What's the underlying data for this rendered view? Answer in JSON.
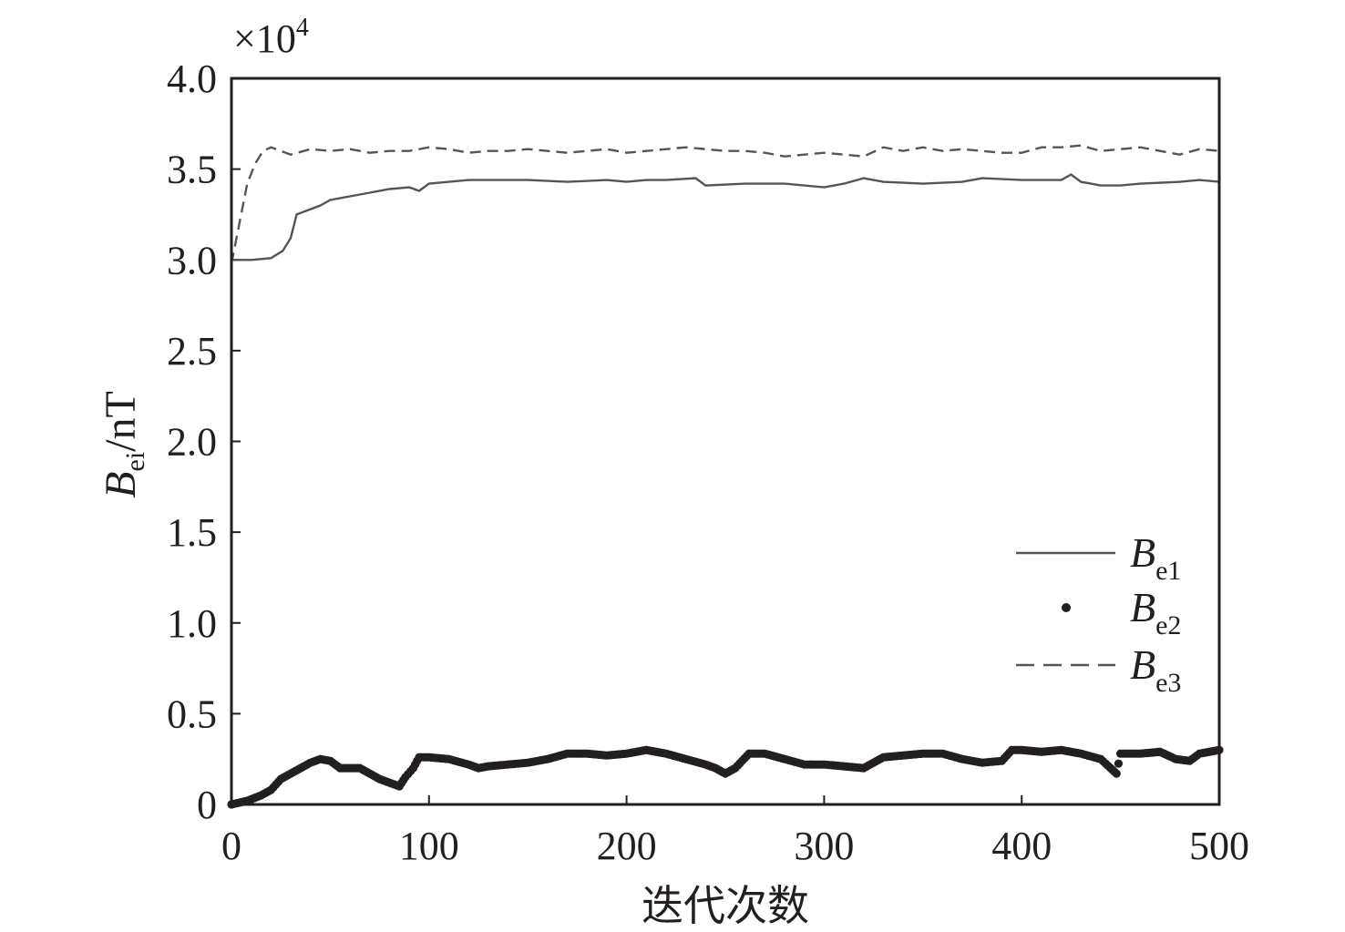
{
  "chart_data": {
    "type": "line",
    "multiplier": "×10",
    "multiplier_exp": "4",
    "xlabel": "迭代次数",
    "ylabel": {
      "base": "B",
      "sub": "ei",
      "unit": "/nT"
    },
    "xlim": [
      0,
      500
    ],
    "ylim": [
      0,
      4.0
    ],
    "xticks": [
      "0",
      "100",
      "200",
      "300",
      "400",
      "500"
    ],
    "yticks": [
      "0",
      "0.5",
      "1.0",
      "1.5",
      "2.0",
      "2.5",
      "3.0",
      "3.5",
      "4.0"
    ],
    "legend_position": "bottom-right",
    "series": [
      {
        "name": "B",
        "sub": "e1",
        "style": "solid",
        "color": "#555555",
        "points": [
          [
            0,
            3.0
          ],
          [
            5,
            3.0
          ],
          [
            10,
            3.0
          ],
          [
            20,
            3.01
          ],
          [
            26,
            3.05
          ],
          [
            30,
            3.12
          ],
          [
            33,
            3.25
          ],
          [
            45,
            3.3
          ],
          [
            50,
            3.33
          ],
          [
            60,
            3.35
          ],
          [
            70,
            3.37
          ],
          [
            80,
            3.39
          ],
          [
            90,
            3.4
          ],
          [
            95,
            3.38
          ],
          [
            100,
            3.42
          ],
          [
            110,
            3.43
          ],
          [
            120,
            3.44
          ],
          [
            130,
            3.44
          ],
          [
            150,
            3.44
          ],
          [
            170,
            3.43
          ],
          [
            190,
            3.44
          ],
          [
            200,
            3.43
          ],
          [
            210,
            3.44
          ],
          [
            220,
            3.44
          ],
          [
            235,
            3.45
          ],
          [
            240,
            3.41
          ],
          [
            260,
            3.42
          ],
          [
            280,
            3.42
          ],
          [
            290,
            3.41
          ],
          [
            300,
            3.4
          ],
          [
            310,
            3.42
          ],
          [
            320,
            3.45
          ],
          [
            330,
            3.43
          ],
          [
            350,
            3.42
          ],
          [
            370,
            3.43
          ],
          [
            380,
            3.45
          ],
          [
            400,
            3.44
          ],
          [
            420,
            3.44
          ],
          [
            425,
            3.47
          ],
          [
            430,
            3.43
          ],
          [
            440,
            3.41
          ],
          [
            450,
            3.41
          ],
          [
            460,
            3.42
          ],
          [
            480,
            3.43
          ],
          [
            490,
            3.44
          ],
          [
            500,
            3.43
          ]
        ]
      },
      {
        "name": "B",
        "sub": "e2",
        "style": "dots",
        "color": "#231f20",
        "points": [
          [
            0,
            0
          ],
          [
            8,
            0.02
          ],
          [
            15,
            0.05
          ],
          [
            20,
            0.08
          ],
          [
            25,
            0.14
          ],
          [
            30,
            0.17
          ],
          [
            35,
            0.2
          ],
          [
            40,
            0.23
          ],
          [
            45,
            0.25
          ],
          [
            50,
            0.24
          ],
          [
            55,
            0.2
          ],
          [
            60,
            0.2
          ],
          [
            65,
            0.2
          ],
          [
            70,
            0.17
          ],
          [
            75,
            0.14
          ],
          [
            80,
            0.12
          ],
          [
            85,
            0.1
          ],
          [
            88,
            0.15
          ],
          [
            92,
            0.2
          ],
          [
            95,
            0.26
          ],
          [
            100,
            0.26
          ],
          [
            110,
            0.25
          ],
          [
            120,
            0.22
          ],
          [
            125,
            0.2
          ],
          [
            130,
            0.21
          ],
          [
            140,
            0.22
          ],
          [
            150,
            0.23
          ],
          [
            160,
            0.25
          ],
          [
            170,
            0.28
          ],
          [
            180,
            0.28
          ],
          [
            190,
            0.27
          ],
          [
            200,
            0.28
          ],
          [
            210,
            0.3
          ],
          [
            220,
            0.28
          ],
          [
            230,
            0.25
          ],
          [
            240,
            0.22
          ],
          [
            245,
            0.2
          ],
          [
            250,
            0.17
          ],
          [
            255,
            0.2
          ],
          [
            262,
            0.28
          ],
          [
            270,
            0.28
          ],
          [
            280,
            0.25
          ],
          [
            290,
            0.22
          ],
          [
            300,
            0.22
          ],
          [
            310,
            0.21
          ],
          [
            320,
            0.2
          ],
          [
            330,
            0.26
          ],
          [
            340,
            0.27
          ],
          [
            350,
            0.28
          ],
          [
            360,
            0.28
          ],
          [
            370,
            0.25
          ],
          [
            380,
            0.23
          ],
          [
            390,
            0.24
          ],
          [
            395,
            0.3
          ],
          [
            400,
            0.3
          ],
          [
            410,
            0.29
          ],
          [
            420,
            0.3
          ],
          [
            430,
            0.28
          ],
          [
            440,
            0.25
          ],
          [
            445,
            0.2
          ],
          [
            448,
            0.17
          ],
          [
            450,
            0.28
          ],
          [
            460,
            0.28
          ],
          [
            470,
            0.29
          ],
          [
            478,
            0.25
          ],
          [
            485,
            0.24
          ],
          [
            490,
            0.28
          ],
          [
            500,
            0.3
          ]
        ]
      },
      {
        "name": "B",
        "sub": "e3",
        "style": "dashed",
        "color": "#555555",
        "points": [
          [
            0,
            2.98
          ],
          [
            4,
            3.2
          ],
          [
            8,
            3.42
          ],
          [
            12,
            3.53
          ],
          [
            16,
            3.6
          ],
          [
            20,
            3.62
          ],
          [
            30,
            3.58
          ],
          [
            40,
            3.61
          ],
          [
            50,
            3.6
          ],
          [
            60,
            3.61
          ],
          [
            70,
            3.59
          ],
          [
            80,
            3.6
          ],
          [
            90,
            3.6
          ],
          [
            100,
            3.62
          ],
          [
            110,
            3.61
          ],
          [
            120,
            3.59
          ],
          [
            130,
            3.6
          ],
          [
            140,
            3.6
          ],
          [
            150,
            3.61
          ],
          [
            160,
            3.6
          ],
          [
            170,
            3.59
          ],
          [
            180,
            3.6
          ],
          [
            190,
            3.61
          ],
          [
            200,
            3.59
          ],
          [
            210,
            3.6
          ],
          [
            220,
            3.61
          ],
          [
            230,
            3.62
          ],
          [
            240,
            3.61
          ],
          [
            250,
            3.6
          ],
          [
            260,
            3.6
          ],
          [
            270,
            3.59
          ],
          [
            280,
            3.57
          ],
          [
            290,
            3.58
          ],
          [
            300,
            3.59
          ],
          [
            310,
            3.58
          ],
          [
            320,
            3.57
          ],
          [
            330,
            3.62
          ],
          [
            340,
            3.6
          ],
          [
            350,
            3.62
          ],
          [
            360,
            3.6
          ],
          [
            370,
            3.61
          ],
          [
            380,
            3.6
          ],
          [
            390,
            3.59
          ],
          [
            400,
            3.59
          ],
          [
            410,
            3.62
          ],
          [
            420,
            3.62
          ],
          [
            430,
            3.63
          ],
          [
            440,
            3.6
          ],
          [
            450,
            3.61
          ],
          [
            460,
            3.62
          ],
          [
            470,
            3.6
          ],
          [
            480,
            3.58
          ],
          [
            490,
            3.61
          ],
          [
            500,
            3.6
          ]
        ]
      }
    ]
  }
}
